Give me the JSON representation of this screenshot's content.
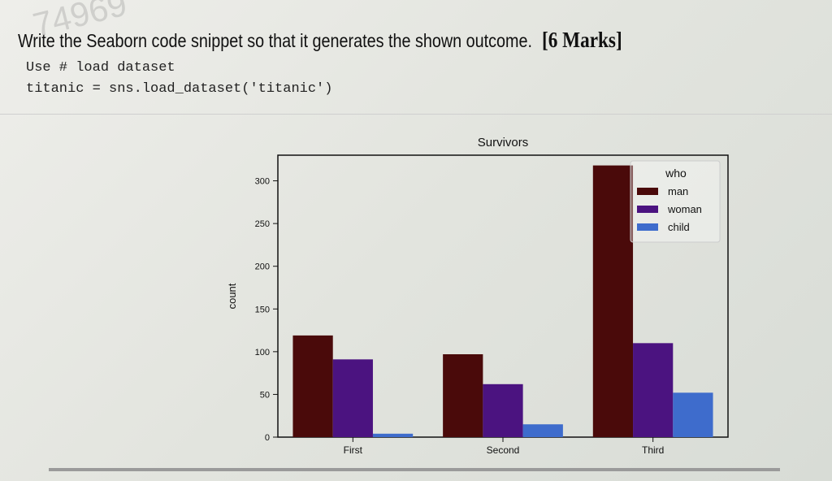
{
  "question": {
    "text": "Write the Seaborn code snippet so that it generates the shown outcome.",
    "marks": "[6 Marks]",
    "code_lines": [
      "Use # load dataset",
      "titanic = sns.load_dataset('titanic')"
    ],
    "watermark": "74969"
  },
  "chart_data": {
    "type": "bar",
    "title": "Survivors",
    "xlabel": "",
    "ylabel": "count",
    "categories": [
      "First",
      "Second",
      "Third"
    ],
    "legend_title": "who",
    "legend_position": "top-right",
    "series": [
      {
        "name": "man",
        "color": "#4a0a0a",
        "values": [
          119,
          97,
          318
        ]
      },
      {
        "name": "woman",
        "color": "#4b1380",
        "values": [
          91,
          62,
          110
        ]
      },
      {
        "name": "child",
        "color": "#3e6ccc",
        "values": [
          4,
          15,
          52
        ]
      }
    ],
    "ylim": [
      0,
      330
    ],
    "yticks": [
      0,
      50,
      100,
      150,
      200,
      250,
      300
    ],
    "grid": false
  }
}
